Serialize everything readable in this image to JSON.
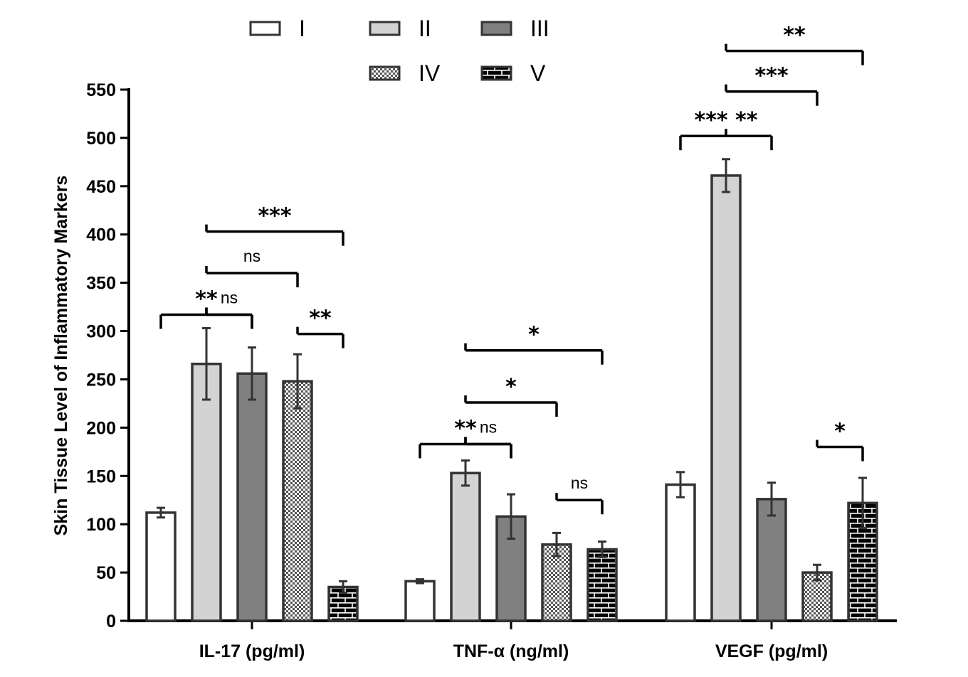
{
  "chart_data": {
    "type": "bar",
    "ylabel": "Skin Tissue Level of Inflammatory Markers",
    "ylim": [
      0,
      550
    ],
    "yticks": [
      "0",
      "50",
      "100",
      "150",
      "200",
      "250",
      "300",
      "350",
      "400",
      "450",
      "500",
      "550"
    ],
    "categories": [
      "IL-17 (pg/ml)",
      "TNF-α (ng/ml)",
      "VEGF (pg/ml)"
    ],
    "legend_position": "top",
    "series": [
      {
        "name": "I",
        "fill": "white",
        "values": [
          112,
          41,
          141
        ],
        "errors": [
          5,
          2,
          13
        ]
      },
      {
        "name": "II",
        "fill": "light",
        "values": [
          266,
          153,
          461
        ],
        "errors": [
          37,
          13,
          17
        ]
      },
      {
        "name": "III",
        "fill": "dark",
        "values": [
          256,
          108,
          126
        ],
        "errors": [
          27,
          23,
          17
        ]
      },
      {
        "name": "IV",
        "fill": "checker",
        "values": [
          248,
          79,
          50
        ],
        "errors": [
          28,
          12,
          8
        ]
      },
      {
        "name": "V",
        "fill": "brick",
        "values": [
          35,
          74,
          122
        ],
        "errors": [
          6,
          8,
          26
        ]
      }
    ],
    "colors": {
      "axis": "#000000",
      "outline": "#333333",
      "light": "#d3d3d3",
      "dark": "#808080"
    },
    "significance": [
      {
        "category": 0,
        "from": 1,
        "to": [
          0,
          2
        ],
        "y": 317,
        "label": "**"
      },
      {
        "category": 0,
        "from": 1,
        "to": [
          2
        ],
        "y": 317,
        "label": "ns",
        "label_pos": "right"
      },
      {
        "category": 0,
        "from": 1,
        "to": [
          3
        ],
        "y": 360,
        "label": "ns"
      },
      {
        "category": 0,
        "from": 1,
        "to": [
          4
        ],
        "y": 403,
        "label": "***"
      },
      {
        "category": 0,
        "from": 3,
        "to": [
          4
        ],
        "y": 297,
        "label": "**"
      },
      {
        "category": 1,
        "from": 1,
        "to": [
          0,
          2
        ],
        "y": 183,
        "label": "**"
      },
      {
        "category": 1,
        "from": 1,
        "to": [
          2
        ],
        "y": 183,
        "label": "ns",
        "label_pos": "right"
      },
      {
        "category": 1,
        "from": 1,
        "to": [
          3
        ],
        "y": 226,
        "label": "*"
      },
      {
        "category": 1,
        "from": 1,
        "to": [
          4
        ],
        "y": 280,
        "label": "*"
      },
      {
        "category": 1,
        "from": 3,
        "to": [
          4
        ],
        "y": 125,
        "label": "ns"
      },
      {
        "category": 2,
        "from": 1,
        "to": [
          0,
          2
        ],
        "y": 502,
        "label": "*** **"
      },
      {
        "category": 2,
        "from": 1,
        "to": [
          3
        ],
        "y": 548,
        "label": "***"
      },
      {
        "category": 2,
        "from": 1,
        "to": [
          4
        ],
        "y": 590,
        "label": "**"
      },
      {
        "category": 2,
        "from": 3,
        "to": [
          4
        ],
        "y": 180,
        "label": "*"
      }
    ]
  }
}
